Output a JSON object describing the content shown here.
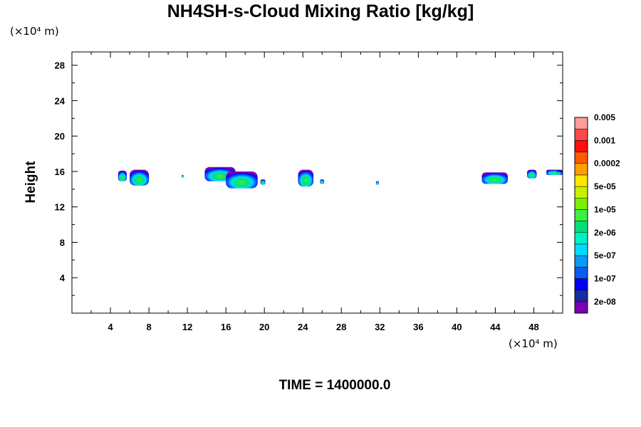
{
  "chart_data": {
    "type": "heatmap",
    "title": "NH4SH-s-Cloud Mixing Ratio [kg/kg]",
    "ylabel": "Height",
    "x_unit_label": "(×10⁴ m)",
    "y_unit_label": "(×10⁴ m)",
    "xlim": [
      0,
      51
    ],
    "ylim": [
      0,
      29.5
    ],
    "x_ticks": [
      4,
      8,
      12,
      16,
      20,
      24,
      28,
      32,
      36,
      40,
      44,
      48
    ],
    "y_ticks": [
      4,
      8,
      12,
      16,
      20,
      24,
      28
    ],
    "colorbar": {
      "colors": [
        "#7a00b0",
        "#1a2aa0",
        "#0000ff",
        "#0a5cf0",
        "#0a9af5",
        "#00dcff",
        "#00f0c8",
        "#00e07a",
        "#3ef03e",
        "#7cf000",
        "#c8f000",
        "#ffe600",
        "#ff9f00",
        "#ff5a00",
        "#ff1010",
        "#ff4848",
        "#ff9c9c"
      ],
      "labels": [
        "2e-08",
        "1e-07",
        "5e-07",
        "2e-06",
        "1e-05",
        "5e-05",
        "0.0002",
        "0.001",
        "0.005"
      ]
    },
    "cloud_regions": [
      {
        "x": [
          4.8,
          5.7
        ],
        "y": [
          14.9,
          16.1
        ]
      },
      {
        "x": [
          6.0,
          8.0
        ],
        "y": [
          14.4,
          16.2
        ]
      },
      {
        "x": [
          11.4,
          11.6
        ],
        "y": [
          15.3,
          15.6
        ]
      },
      {
        "x": [
          13.8,
          17.0
        ],
        "y": [
          14.9,
          16.5
        ]
      },
      {
        "x": [
          16.0,
          19.3
        ],
        "y": [
          14.1,
          16.0
        ]
      },
      {
        "x": [
          19.6,
          20.1
        ],
        "y": [
          14.5,
          15.1
        ]
      },
      {
        "x": [
          23.5,
          25.1
        ],
        "y": [
          14.3,
          16.2
        ]
      },
      {
        "x": [
          25.8,
          26.2
        ],
        "y": [
          14.6,
          15.1
        ]
      },
      {
        "x": [
          31.6,
          31.9
        ],
        "y": [
          14.5,
          14.9
        ]
      },
      {
        "x": [
          42.6,
          45.3
        ],
        "y": [
          14.6,
          15.9
        ]
      },
      {
        "x": [
          47.3,
          48.3
        ],
        "y": [
          15.2,
          16.2
        ]
      },
      {
        "x": [
          49.3,
          51.0
        ],
        "y": [
          15.6,
          16.2
        ]
      }
    ]
  },
  "time_label": "TIME = 1400000.0"
}
